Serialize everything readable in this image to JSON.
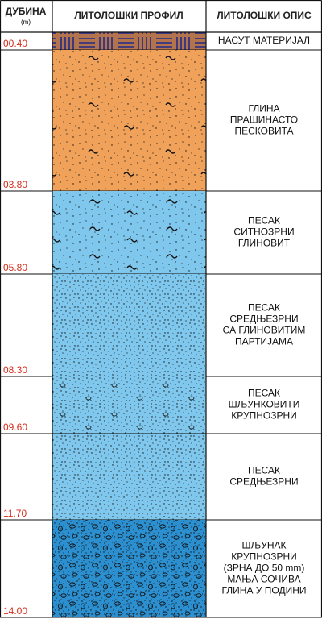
{
  "header": {
    "depth": "ДУБИНА",
    "unit": "(m)",
    "profile": "ЛИТОЛОШКИ ПРОФИЛ",
    "description": "ЛИТОЛОШКИ ОПИС"
  },
  "layers": [
    {
      "depth": "00.40",
      "description": [
        "НАСУТ МАТЕРИЈАЛ"
      ]
    },
    {
      "depth": "03.80",
      "description": [
        "ГЛИНА",
        "ПРАШИНАСТО",
        "ПЕСКОВИТА"
      ]
    },
    {
      "depth": "05.80",
      "description": [
        "ПЕСАК",
        "СИТНОЗРНИ",
        "ГЛИНОВИТ"
      ]
    },
    {
      "depth": "08.30",
      "description": [
        "ПЕСАК",
        "СРЕДЊЕЗРНИ",
        "СА ГЛИНОВИТИМ",
        "ПАРТИЈАМА"
      ]
    },
    {
      "depth": "09.60",
      "description": [
        "ПЕСАК",
        "ШЉУНКОВИТИ",
        "КРУПНОЗРНИ"
      ]
    },
    {
      "depth": "11.70",
      "description": [
        "ПЕСАК",
        "СРЕДЊЕЗРНИ"
      ]
    },
    {
      "depth": "14.00",
      "description": [
        "ШЉУНАК",
        "КРУПНОЗРНИ",
        "(ЗРНА ДО 50 mm)",
        "МАЊА СОЧИВА",
        "ГЛИНА У ПОДИНИ"
      ]
    }
  ]
}
